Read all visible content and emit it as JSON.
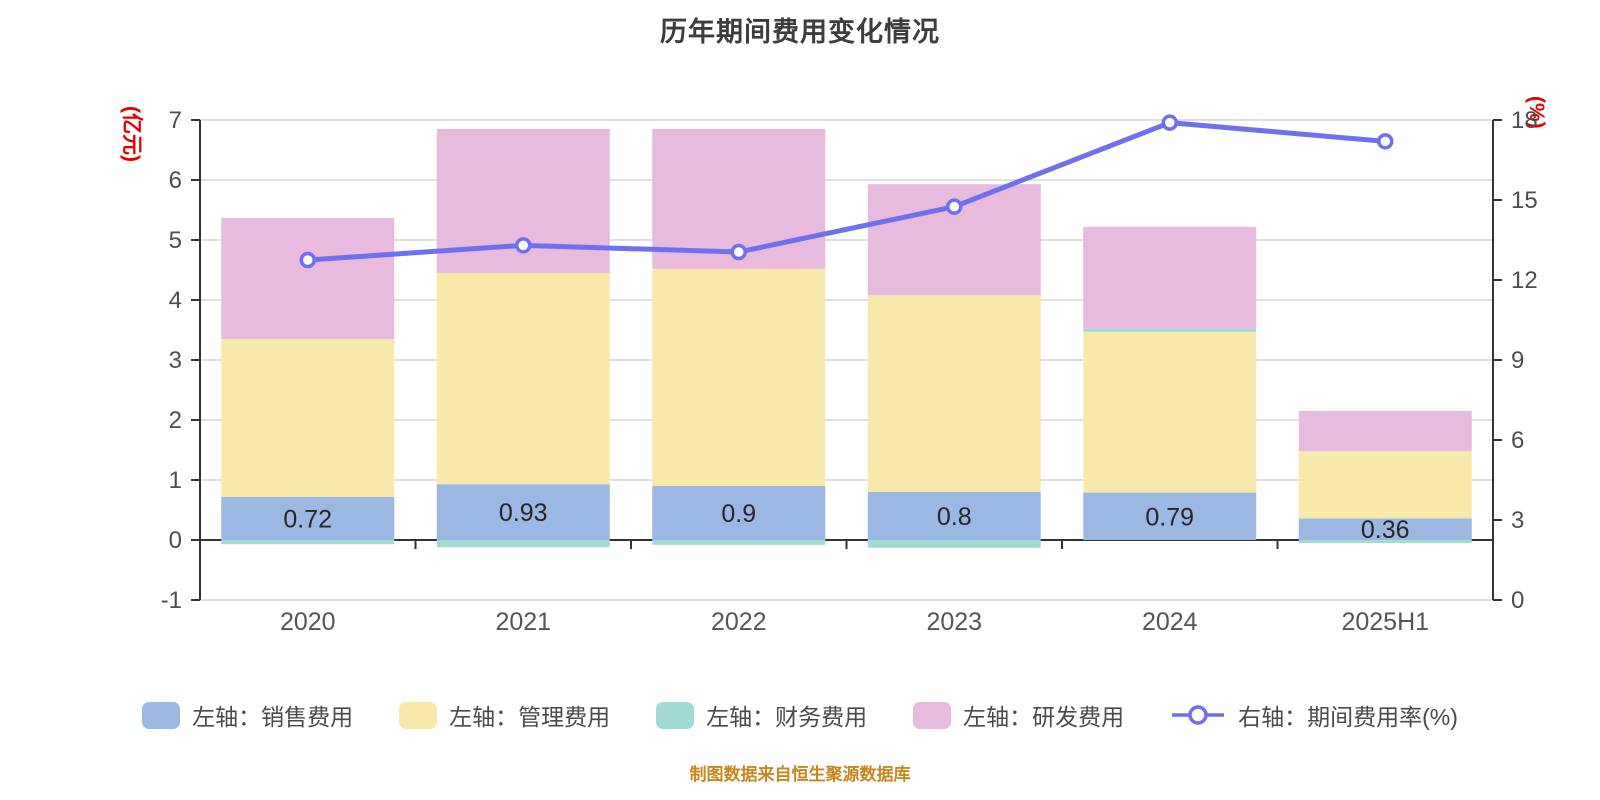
{
  "title": "历年期间费用变化情况",
  "footer": "制图数据来自恒生聚源数据库",
  "colors": {
    "sales": "#9bb8e3",
    "management": "#f8e9ab",
    "finance": "#a2dbd4",
    "rnd": "#e7bade",
    "rate_line": "#6f70ee",
    "marker_fill": "#ffffff",
    "grid": "#d6d6d6",
    "axis_line": "#333333",
    "tick_label": "#4d4d4d",
    "category_label": "#555555",
    "value_label": "#262626",
    "title_color": "#3d3d3d",
    "axis_name_color": "#e60000",
    "footer_color": "#c8861d"
  },
  "chart_data": {
    "type": "bar",
    "subtype": "stacked-bar-with-line",
    "title": "历年期间费用变化情况",
    "categories": [
      "2020",
      "2021",
      "2022",
      "2023",
      "2024",
      "2025H1"
    ],
    "bar_series": [
      {
        "name": "左轴：销售费用",
        "key": "sales",
        "color": "#9bb8e3",
        "values": [
          0.72,
          0.93,
          0.9,
          0.8,
          0.79,
          0.36
        ]
      },
      {
        "name": "左轴：管理费用",
        "key": "management",
        "color": "#f8e9ab",
        "values": [
          2.63,
          3.52,
          3.62,
          3.28,
          2.68,
          1.12
        ]
      },
      {
        "name": "左轴：财务费用",
        "key": "finance",
        "color": "#a2dbd4",
        "values": [
          -0.07,
          -0.12,
          -0.08,
          -0.13,
          0.05,
          -0.05
        ]
      },
      {
        "name": "左轴：研发费用",
        "key": "rnd",
        "color": "#e7bade",
        "values": [
          2.02,
          2.4,
          2.33,
          1.85,
          1.7,
          0.67
        ]
      }
    ],
    "line_series": {
      "name": "右轴：期间费用率(%)",
      "color": "#6f70ee",
      "values": [
        12.75,
        13.3,
        13.05,
        14.75,
        17.9,
        17.2
      ]
    },
    "bar_labels": [
      "0.72",
      "0.93",
      "0.9",
      "0.8",
      "0.79",
      "0.36"
    ],
    "left_axis": {
      "name": "(亿元)",
      "min": -1,
      "max": 7,
      "tick_step": 1,
      "tick_labels": [
        "7",
        "6",
        "5",
        "4",
        "3",
        "2",
        "1",
        "0",
        "-1"
      ]
    },
    "right_axis": {
      "name": "(%)",
      "min": 0,
      "max": 18,
      "tick_step": 3,
      "tick_labels": [
        "18",
        "15",
        "12",
        "9",
        "6",
        "3",
        "0"
      ]
    },
    "stacked": true,
    "grid": true,
    "legend_position": "bottom"
  },
  "legend": {
    "items": [
      {
        "label": "左轴：销售费用",
        "type": "bar",
        "color": "#9bb8e3"
      },
      {
        "label": "左轴：管理费用",
        "type": "bar",
        "color": "#f8e9ab"
      },
      {
        "label": "左轴：财务费用",
        "type": "bar",
        "color": "#a2dbd4"
      },
      {
        "label": "左轴：研发费用",
        "type": "bar",
        "color": "#e7bade"
      },
      {
        "label": "右轴：期间费用率(%)",
        "type": "line",
        "color": "#6f70ee"
      }
    ]
  }
}
